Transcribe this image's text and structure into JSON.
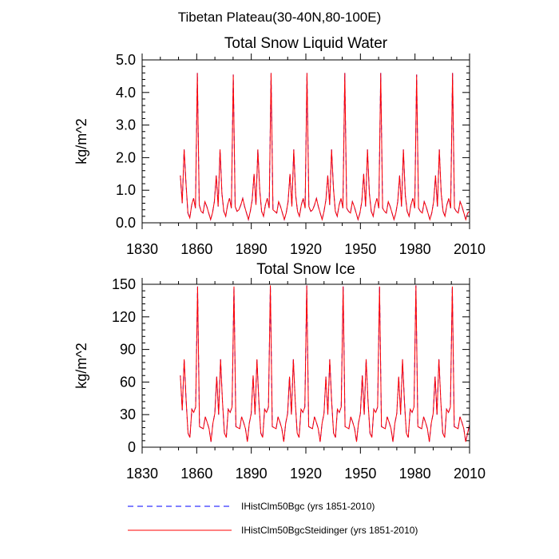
{
  "figure_title": "Tibetan Plateau(30-40N,80-100E)",
  "legend": [
    {
      "label": "IHistClm50Bgc (yrs 1851-2010)",
      "color": "#0000ff",
      "style": "dashed"
    },
    {
      "label": "IHistClm50BgcSteidinger (yrs 1851-2010)",
      "color": "#ff0000",
      "style": "solid"
    }
  ],
  "chart_data": [
    {
      "type": "line",
      "title": "Total Snow Liquid Water",
      "xlabel": "",
      "ylabel": "kg/m^2",
      "xlim": [
        1830,
        2010
      ],
      "ylim": [
        0,
        5
      ],
      "xticks": [
        1830,
        1860,
        1890,
        1920,
        1950,
        1980,
        2010
      ],
      "yticks": [
        "0.0",
        "1.0",
        "2.0",
        "3.0",
        "4.0",
        "5.0"
      ],
      "x_start": 1851,
      "x_end": 2010,
      "series": [
        {
          "name": "IHistClm50Bgc (yrs 1851-2010)",
          "color": "#0000ff",
          "values": [
            1.45,
            0.6,
            2.25,
            1.2,
            0.3,
            0.15,
            0.55,
            0.75,
            0.45,
            4.6,
            0.55,
            0.35,
            0.3,
            0.65,
            0.5,
            0.3,
            0.1,
            0.3,
            0.65,
            1.45,
            0.5,
            2.25,
            0.9,
            0.35,
            0.2,
            0.55,
            0.75,
            0.45,
            4.55,
            0.5,
            0.35,
            0.4,
            0.55,
            0.75,
            0.5,
            0.3,
            0.1,
            0.35,
            0.7,
            1.5,
            0.55,
            2.25,
            1.0,
            0.35,
            0.2,
            0.55,
            0.75,
            0.45,
            4.6,
            0.4,
            0.35,
            0.3,
            0.65,
            0.5,
            0.3,
            0.1,
            0.3,
            0.65,
            1.5,
            0.5,
            2.25,
            0.85,
            0.35,
            0.2,
            0.55,
            0.75,
            0.45,
            4.6,
            0.5,
            0.35,
            0.4,
            0.55,
            0.75,
            0.5,
            0.3,
            0.1,
            0.35,
            0.7,
            1.45,
            0.55,
            2.25,
            1.05,
            0.35,
            0.2,
            0.55,
            0.75,
            0.45,
            4.6,
            0.45,
            0.35,
            0.3,
            0.65,
            0.5,
            0.3,
            0.1,
            0.3,
            0.65,
            1.5,
            0.5,
            2.25,
            0.9,
            0.35,
            0.2,
            0.55,
            0.75,
            0.45,
            4.6,
            0.45,
            0.35,
            0.3,
            0.65,
            0.5,
            0.3,
            0.1,
            0.3,
            0.65,
            1.45,
            0.5,
            2.25,
            0.85,
            0.35,
            0.2,
            0.55,
            0.75,
            0.45,
            4.55,
            0.45,
            0.35,
            0.3,
            0.65,
            0.5,
            0.3,
            0.1,
            0.3,
            0.65,
            1.45,
            0.5,
            2.25,
            0.9,
            0.35,
            0.2,
            0.55,
            0.75,
            0.45,
            4.6,
            0.45,
            0.35,
            0.3,
            0.65,
            0.5,
            0.3,
            0.1,
            0.3,
            0.35
          ]
        },
        {
          "name": "IHistClm50BgcSteidinger (yrs 1851-2010)",
          "color": "#ff0000",
          "values": [
            1.45,
            0.6,
            2.25,
            1.2,
            0.3,
            0.15,
            0.55,
            0.75,
            0.45,
            4.6,
            0.55,
            0.35,
            0.3,
            0.65,
            0.5,
            0.3,
            0.1,
            0.3,
            0.65,
            1.45,
            0.5,
            2.25,
            0.9,
            0.35,
            0.2,
            0.55,
            0.75,
            0.45,
            4.55,
            0.5,
            0.35,
            0.4,
            0.55,
            0.75,
            0.5,
            0.3,
            0.1,
            0.35,
            0.7,
            1.5,
            0.55,
            2.25,
            1.0,
            0.35,
            0.2,
            0.55,
            0.75,
            0.45,
            4.6,
            0.4,
            0.35,
            0.3,
            0.65,
            0.5,
            0.3,
            0.1,
            0.3,
            0.65,
            1.5,
            0.5,
            2.25,
            0.85,
            0.35,
            0.2,
            0.55,
            0.75,
            0.45,
            4.6,
            0.5,
            0.35,
            0.4,
            0.55,
            0.75,
            0.5,
            0.3,
            0.1,
            0.35,
            0.7,
            1.45,
            0.55,
            2.25,
            1.05,
            0.35,
            0.2,
            0.55,
            0.75,
            0.45,
            4.6,
            0.45,
            0.35,
            0.3,
            0.65,
            0.5,
            0.3,
            0.1,
            0.3,
            0.65,
            1.5,
            0.5,
            2.25,
            0.9,
            0.35,
            0.2,
            0.55,
            0.75,
            0.45,
            4.6,
            0.45,
            0.35,
            0.3,
            0.65,
            0.5,
            0.3,
            0.1,
            0.3,
            0.65,
            1.45,
            0.5,
            2.25,
            0.85,
            0.35,
            0.2,
            0.55,
            0.75,
            0.45,
            4.55,
            0.45,
            0.35,
            0.3,
            0.65,
            0.5,
            0.3,
            0.1,
            0.3,
            0.65,
            1.45,
            0.5,
            2.25,
            0.9,
            0.35,
            0.2,
            0.55,
            0.75,
            0.45,
            4.6,
            0.45,
            0.35,
            0.3,
            0.65,
            0.5,
            0.3,
            0.1,
            0.3,
            0.35
          ]
        }
      ]
    },
    {
      "type": "line",
      "title": "Total Snow Ice",
      "xlabel": "",
      "ylabel": "kg/m^2",
      "xlim": [
        1830,
        2010
      ],
      "ylim": [
        0,
        150
      ],
      "xticks": [
        1830,
        1860,
        1890,
        1920,
        1950,
        1980,
        2010
      ],
      "yticks": [
        "0",
        "30",
        "60",
        "90",
        "120",
        "150"
      ],
      "x_start": 1851,
      "x_end": 2010,
      "series": [
        {
          "name": "IHistClm50Bgc (yrs 1851-2010)",
          "color": "#0000ff",
          "values": [
            66,
            34,
            81,
            44,
            13,
            9,
            35,
            32,
            37,
            148,
            19,
            18,
            17,
            28,
            23,
            17,
            5,
            22,
            31,
            65,
            30,
            81,
            42,
            13,
            9,
            35,
            32,
            37,
            148,
            19,
            18,
            17,
            28,
            23,
            17,
            5,
            22,
            31,
            66,
            30,
            81,
            42,
            13,
            9,
            35,
            32,
            37,
            149,
            19,
            18,
            17,
            28,
            23,
            17,
            5,
            22,
            31,
            65,
            30,
            81,
            42,
            13,
            9,
            35,
            32,
            37,
            149,
            19,
            18,
            17,
            28,
            23,
            17,
            5,
            22,
            31,
            65,
            30,
            81,
            42,
            13,
            9,
            35,
            32,
            37,
            148,
            19,
            18,
            17,
            28,
            23,
            17,
            5,
            22,
            31,
            66,
            30,
            81,
            42,
            13,
            9,
            35,
            32,
            37,
            148,
            19,
            18,
            17,
            28,
            23,
            17,
            5,
            22,
            31,
            65,
            30,
            81,
            42,
            13,
            9,
            35,
            32,
            37,
            149,
            19,
            18,
            17,
            28,
            23,
            17,
            5,
            22,
            31,
            65,
            30,
            81,
            42,
            13,
            9,
            35,
            32,
            37,
            148,
            19,
            18,
            17,
            28,
            23,
            17,
            5,
            13,
            21
          ]
        },
        {
          "name": "IHistClm50BgcSteidinger (yrs 1851-2010)",
          "color": "#ff0000",
          "values": [
            66,
            34,
            81,
            44,
            13,
            9,
            35,
            32,
            37,
            148,
            19,
            18,
            17,
            28,
            23,
            17,
            5,
            22,
            31,
            65,
            30,
            81,
            42,
            13,
            9,
            35,
            32,
            37,
            148,
            19,
            18,
            17,
            28,
            23,
            17,
            5,
            22,
            31,
            66,
            30,
            81,
            42,
            13,
            9,
            35,
            32,
            37,
            149,
            19,
            18,
            17,
            28,
            23,
            17,
            5,
            22,
            31,
            65,
            30,
            81,
            42,
            13,
            9,
            35,
            32,
            37,
            149,
            19,
            18,
            17,
            28,
            23,
            17,
            5,
            22,
            31,
            65,
            30,
            81,
            42,
            13,
            9,
            35,
            32,
            37,
            148,
            19,
            18,
            17,
            28,
            23,
            17,
            5,
            22,
            31,
            66,
            30,
            81,
            42,
            13,
            9,
            35,
            32,
            37,
            148,
            19,
            18,
            17,
            28,
            23,
            17,
            5,
            22,
            31,
            65,
            30,
            81,
            42,
            13,
            9,
            35,
            32,
            37,
            149,
            19,
            18,
            17,
            28,
            23,
            17,
            5,
            22,
            31,
            65,
            30,
            81,
            42,
            13,
            9,
            35,
            32,
            37,
            148,
            19,
            18,
            17,
            28,
            23,
            17,
            5,
            13,
            21
          ]
        }
      ]
    }
  ]
}
